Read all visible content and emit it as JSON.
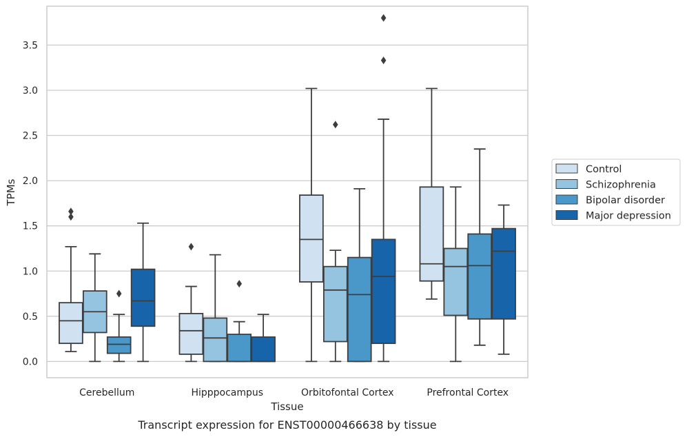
{
  "chart_data": {
    "type": "box",
    "caption": "Transcript expression for ENST00000466638 by tissue",
    "xlabel": "Tissue",
    "ylabel": "TPMs",
    "ylim": [
      -0.18,
      3.93
    ],
    "yticks": [
      0.0,
      0.5,
      1.0,
      1.5,
      2.0,
      2.5,
      3.0,
      3.5
    ],
    "ytick_labels": [
      "0.0",
      "0.5",
      "1.0",
      "1.5",
      "2.0",
      "2.5",
      "3.0",
      "3.5"
    ],
    "grid": "horizontal",
    "legend_position": "right",
    "categories": [
      "Cerebellum",
      "Hipppocampus",
      "Orbitofontal Cortex",
      "Prefrontal Cortex"
    ],
    "series": [
      {
        "name": "Control",
        "color": "#d0e1f2",
        "boxes": [
          {
            "q1": 0.2,
            "median": 0.45,
            "q3": 0.65,
            "whislo": 0.11,
            "whishi": 1.27,
            "fliers": [
              1.6,
              1.66
            ]
          },
          {
            "q1": 0.08,
            "median": 0.34,
            "q3": 0.53,
            "whislo": 0.0,
            "whishi": 0.83,
            "fliers": [
              1.27
            ]
          },
          {
            "q1": 0.88,
            "median": 1.35,
            "q3": 1.84,
            "whislo": 0.0,
            "whishi": 3.02,
            "fliers": []
          },
          {
            "q1": 0.89,
            "median": 1.08,
            "q3": 1.93,
            "whislo": 0.69,
            "whishi": 3.02,
            "fliers": []
          }
        ]
      },
      {
        "name": "Schizophrenia",
        "color": "#94c4df",
        "boxes": [
          {
            "q1": 0.32,
            "median": 0.55,
            "q3": 0.78,
            "whislo": 0.0,
            "whishi": 1.19,
            "fliers": []
          },
          {
            "q1": 0.0,
            "median": 0.26,
            "q3": 0.48,
            "whislo": 0.0,
            "whishi": 1.18,
            "fliers": []
          },
          {
            "q1": 0.22,
            "median": 0.79,
            "q3": 1.05,
            "whislo": 0.0,
            "whishi": 1.23,
            "fliers": [
              2.62
            ]
          },
          {
            "q1": 0.51,
            "median": 1.05,
            "q3": 1.25,
            "whislo": 0.0,
            "whishi": 1.93,
            "fliers": []
          }
        ]
      },
      {
        "name": "Bipolar disorder",
        "color": "#4a98c9",
        "boxes": [
          {
            "q1": 0.09,
            "median": 0.19,
            "q3": 0.27,
            "whislo": 0.0,
            "whishi": 0.52,
            "fliers": [
              0.75
            ]
          },
          {
            "q1": 0.0,
            "median": 0.0,
            "q3": 0.3,
            "whislo": 0.0,
            "whishi": 0.44,
            "fliers": [
              0.86
            ]
          },
          {
            "q1": 0.0,
            "median": 0.74,
            "q3": 1.15,
            "whislo": 0.0,
            "whishi": 1.91,
            "fliers": []
          },
          {
            "q1": 0.47,
            "median": 1.06,
            "q3": 1.41,
            "whislo": 0.18,
            "whishi": 2.35,
            "fliers": []
          }
        ]
      },
      {
        "name": "Major depression",
        "color": "#1764ab",
        "boxes": [
          {
            "q1": 0.39,
            "median": 0.67,
            "q3": 1.02,
            "whislo": 0.0,
            "whishi": 1.53,
            "fliers": []
          },
          {
            "q1": 0.0,
            "median": 0.0,
            "q3": 0.27,
            "whislo": 0.0,
            "whishi": 0.52,
            "fliers": []
          },
          {
            "q1": 0.2,
            "median": 0.94,
            "q3": 1.35,
            "whislo": 0.0,
            "whishi": 2.68,
            "fliers": [
              3.33,
              3.8
            ]
          },
          {
            "q1": 0.47,
            "median": 1.22,
            "q3": 1.47,
            "whislo": 0.08,
            "whishi": 1.73,
            "fliers": []
          }
        ]
      }
    ]
  }
}
